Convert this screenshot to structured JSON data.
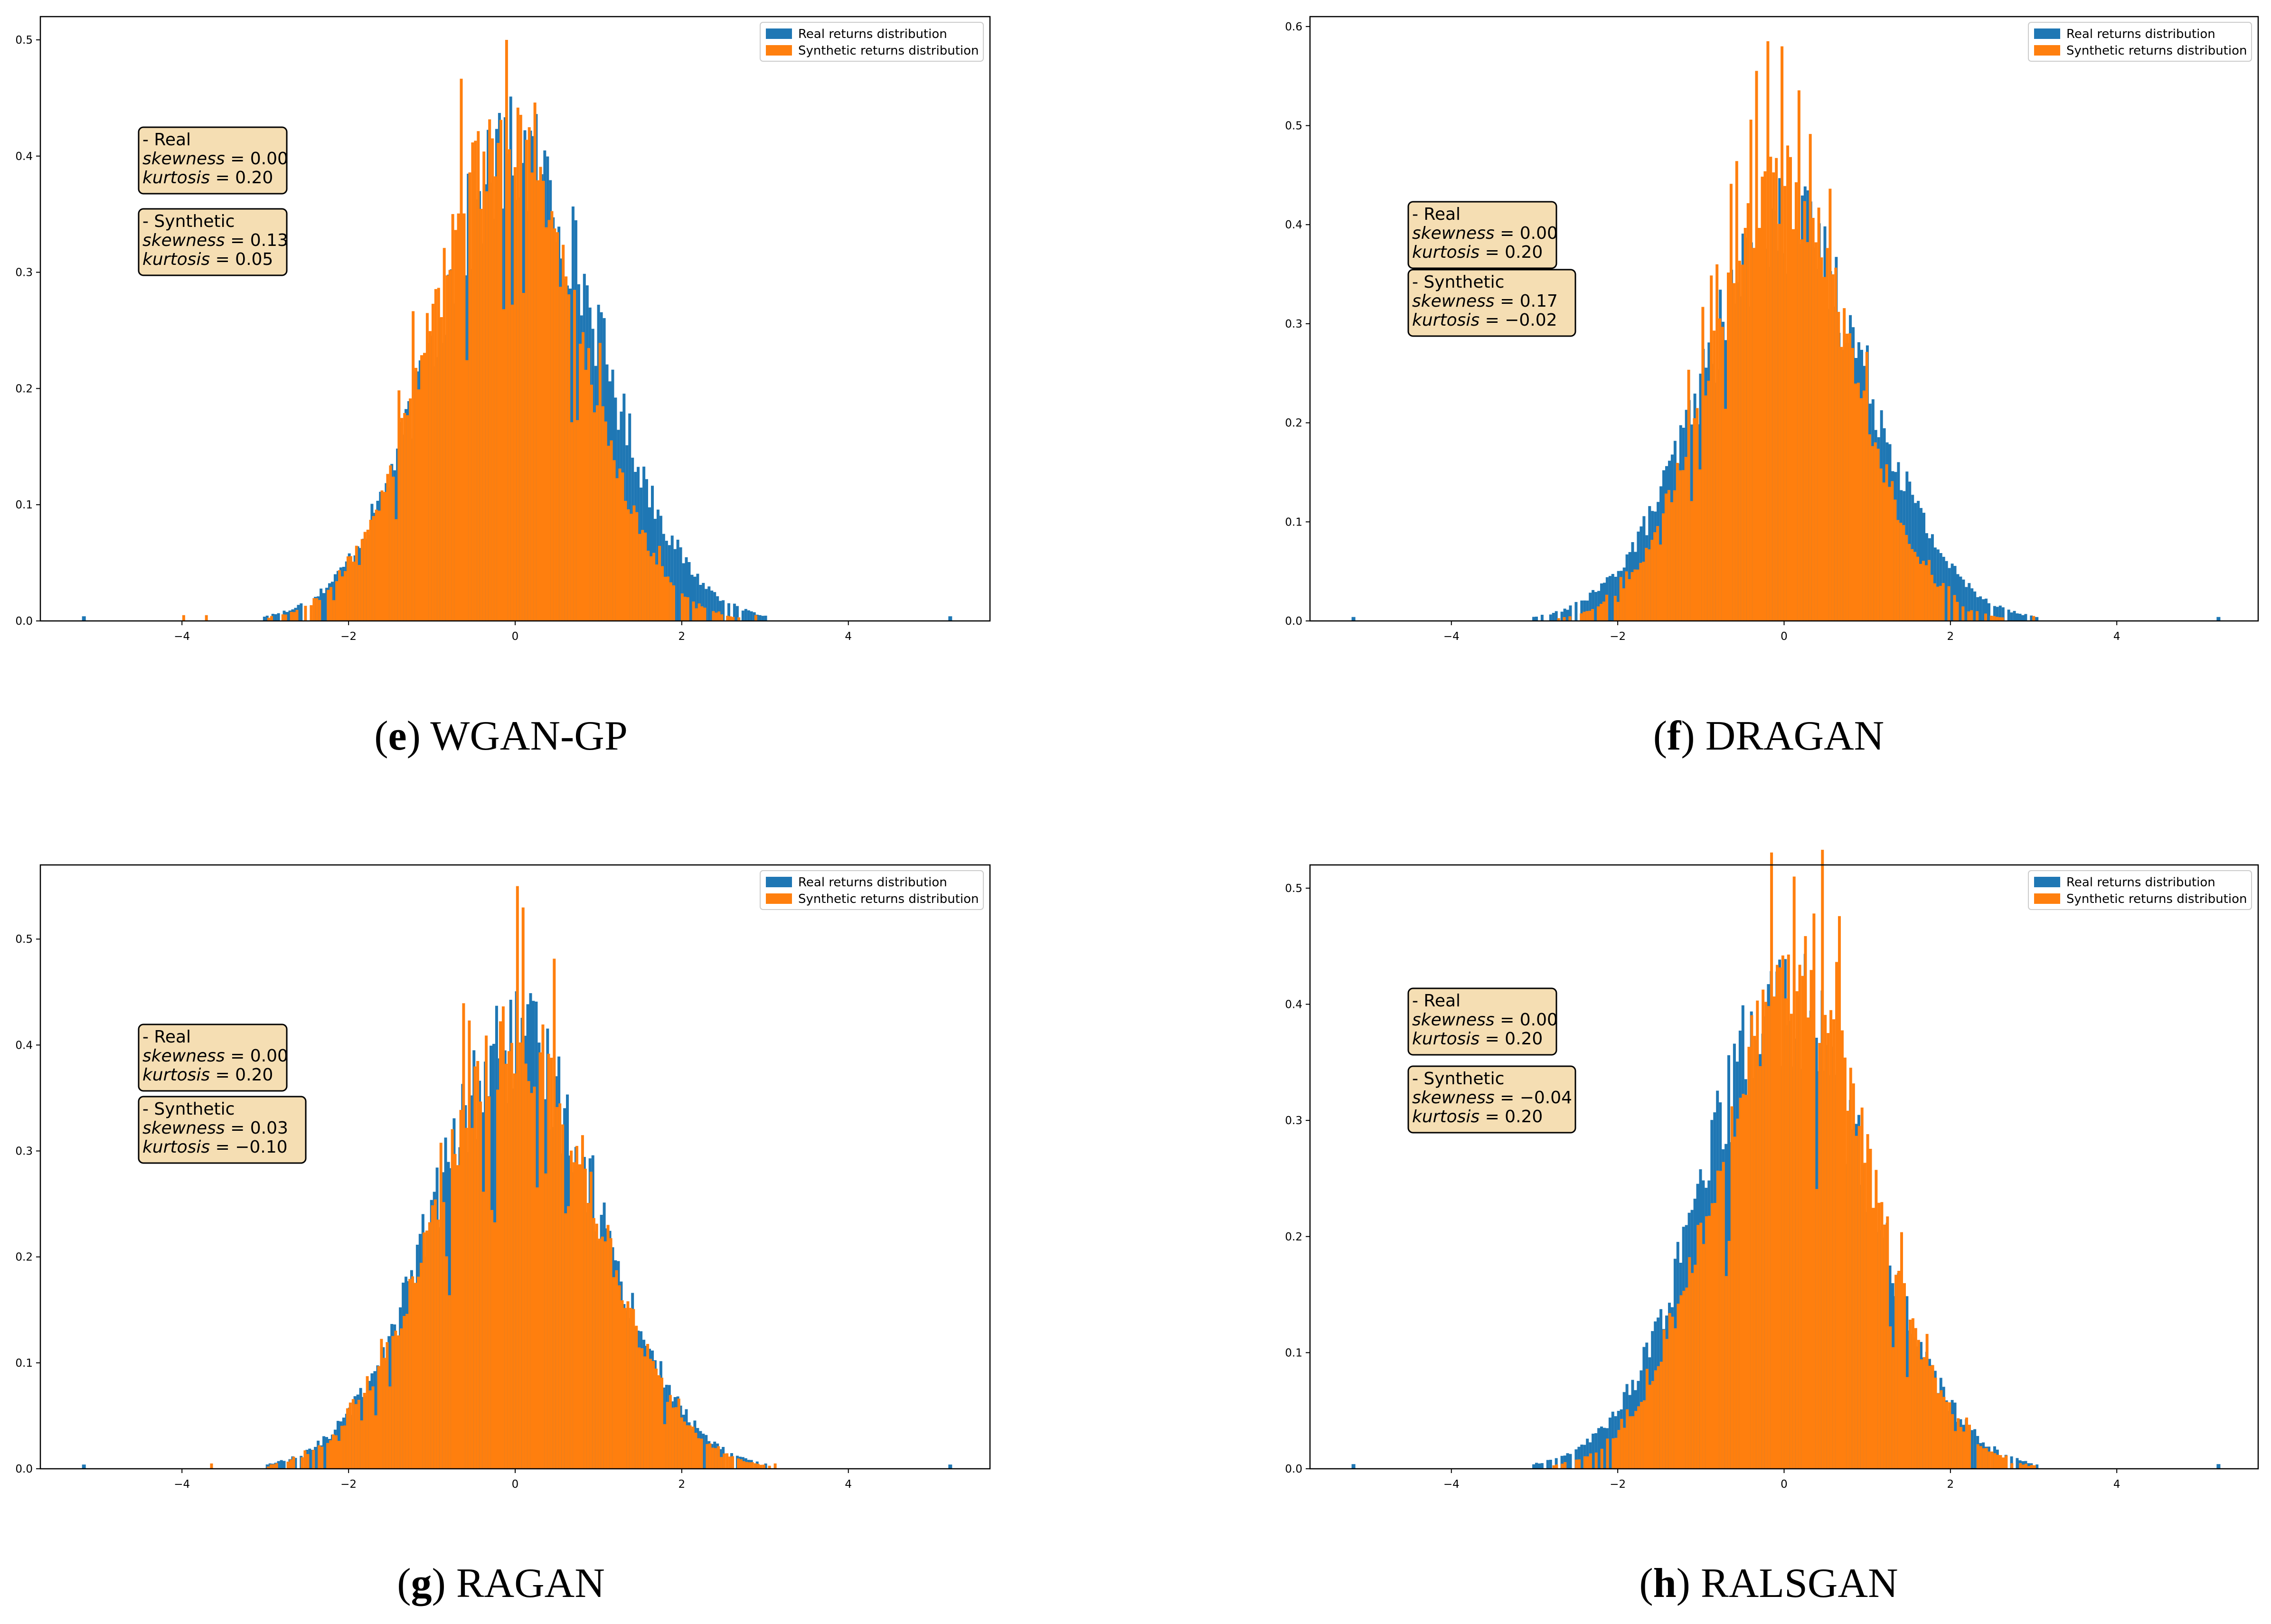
{
  "figure": {
    "legend": {
      "real": "Real returns distribution",
      "synthetic": "Synthetic returns distribution",
      "placement": "top-right"
    },
    "colors": {
      "real": "#1f77b4",
      "synthetic": "#ff7f0e",
      "box_fill": "#f5deb3",
      "axis": "#000000"
    }
  },
  "chart_data": [
    {
      "id": "e",
      "model": "WGAN-GP",
      "type": "histogram",
      "xlim": [
        -5.7,
        5.7
      ],
      "ylim": [
        0,
        0.52
      ],
      "xticks": [
        -4,
        -2,
        0,
        2,
        4
      ],
      "xtick_labels": [
        "−4",
        "−2",
        "0",
        "2",
        "4"
      ],
      "yticks": [
        0,
        0.1,
        0.2,
        0.3,
        0.4,
        0.5
      ],
      "ytick_labels": [
        "0.0",
        "0.1",
        "0.2",
        "0.3",
        "0.4",
        "0.5"
      ],
      "real": {
        "label": "- Real",
        "skewness": "0.00",
        "kurtosis": "0.20",
        "sigma": 1.0,
        "shift": 0.0,
        "peak": 0.4
      },
      "synthetic": {
        "label": "- Synthetic",
        "skewness": "0.13",
        "kurtosis": "0.05",
        "sigma": 0.9,
        "shift": -0.15,
        "peak": 0.42,
        "max_spike": 0.5,
        "range": [
          -4.2,
          3.3
        ]
      },
      "stats_layout": "separated"
    },
    {
      "id": "f",
      "model": "DRAGAN",
      "type": "histogram",
      "xlim": [
        -5.7,
        5.7
      ],
      "ylim": [
        0,
        0.61
      ],
      "xticks": [
        -4,
        -2,
        0,
        2,
        4
      ],
      "xtick_labels": [
        "−4",
        "−2",
        "0",
        "2",
        "4"
      ],
      "yticks": [
        0,
        0.1,
        0.2,
        0.3,
        0.4,
        0.5,
        0.6
      ],
      "ytick_labels": [
        "0.0",
        "0.1",
        "0.2",
        "0.3",
        "0.4",
        "0.5",
        "0.6"
      ],
      "real": {
        "label": "- Real",
        "skewness": "0.00",
        "kurtosis": "0.20",
        "sigma": 1.0,
        "shift": 0.0,
        "peak": 0.4
      },
      "synthetic": {
        "label": "- Synthetic",
        "skewness": "0.17",
        "kurtosis": "−0.02",
        "sigma": 0.85,
        "shift": -0.05,
        "peak": 0.45,
        "max_spike": 0.58,
        "range": [
          -3.0,
          3.1
        ]
      },
      "stats_layout": "stacked"
    },
    {
      "id": "g",
      "model": "RAGAN",
      "type": "histogram",
      "xlim": [
        -5.7,
        5.7
      ],
      "ylim": [
        0,
        0.57
      ],
      "xticks": [
        -4,
        -2,
        0,
        2,
        4
      ],
      "xtick_labels": [
        "−4",
        "−2",
        "0",
        "2",
        "4"
      ],
      "yticks": [
        0,
        0.1,
        0.2,
        0.3,
        0.4,
        0.5
      ],
      "ytick_labels": [
        "0.0",
        "0.1",
        "0.2",
        "0.3",
        "0.4",
        "0.5"
      ],
      "real": {
        "label": "- Real",
        "skewness": "0.00",
        "kurtosis": "0.20",
        "sigma": 1.0,
        "shift": 0.0,
        "peak": 0.4
      },
      "synthetic": {
        "label": "- Synthetic",
        "skewness": "0.03",
        "kurtosis": "−0.10",
        "sigma": 0.97,
        "shift": 0.0,
        "peak": 0.41,
        "max_spike": 0.55,
        "range": [
          -3.9,
          3.4
        ]
      },
      "stats_layout": "stacked"
    },
    {
      "id": "h",
      "model": "RALSGAN",
      "type": "histogram",
      "xlim": [
        -5.7,
        5.7
      ],
      "ylim": [
        0,
        0.52
      ],
      "xticks": [
        -4,
        -2,
        0,
        2,
        4
      ],
      "xtick_labels": [
        "−4",
        "−2",
        "0",
        "2",
        "4"
      ],
      "yticks": [
        0,
        0.1,
        0.2,
        0.3,
        0.4,
        0.5
      ],
      "ytick_labels": [
        "0.0",
        "0.1",
        "0.2",
        "0.3",
        "0.4",
        "0.5"
      ],
      "real": {
        "label": "- Real",
        "skewness": "0.00",
        "kurtosis": "0.20",
        "sigma": 1.0,
        "shift": 0.0,
        "peak": 0.4
      },
      "synthetic": {
        "label": "- Synthetic",
        "skewness": "−0.04",
        "kurtosis": "0.20",
        "sigma": 0.92,
        "shift": 0.1,
        "peak": 0.43,
        "max_spike": 0.51,
        "range": [
          -3.5,
          3.4
        ]
      },
      "stats_layout": "separated"
    }
  ],
  "stat_terms": {
    "skewness": "skewness",
    "kurtosis": "kurtosis",
    "eq": " = "
  }
}
